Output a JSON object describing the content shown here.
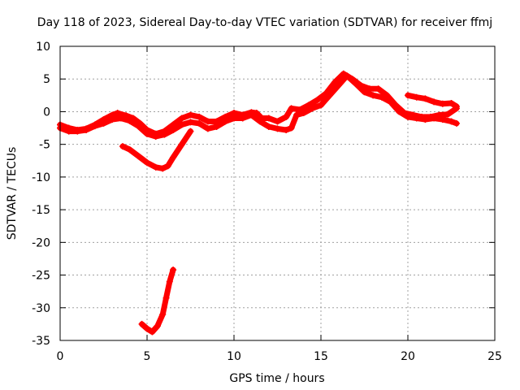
{
  "chart_data": {
    "type": "scatter",
    "title": "Day 118 of 2023, Sidereal Day-to-day VTEC variation (SDTVAR) for receiver ffmj",
    "xlabel": "GPS time / hours",
    "ylabel": "SDTVAR / TECUs",
    "xlim": [
      0,
      25
    ],
    "ylim": [
      -35,
      10
    ],
    "xticks": [
      0,
      5,
      10,
      15,
      20,
      25
    ],
    "yticks": [
      -35,
      -30,
      -25,
      -20,
      -15,
      -10,
      -5,
      0,
      5,
      10
    ],
    "grid": true,
    "marker_color": "#ff0000",
    "series": [
      {
        "name": "main-trace-a",
        "points": [
          [
            0,
            -2.0
          ],
          [
            0.5,
            -2.5
          ],
          [
            1,
            -2.8
          ],
          [
            1.5,
            -2.6
          ],
          [
            2,
            -2.0
          ],
          [
            2.5,
            -1.2
          ],
          [
            3,
            -0.5
          ],
          [
            3.3,
            -0.2
          ],
          [
            3.8,
            -0.6
          ],
          [
            4.2,
            -1.0
          ],
          [
            4.6,
            -1.8
          ],
          [
            5,
            -2.8
          ],
          [
            5.5,
            -3.4
          ],
          [
            6,
            -3.0
          ],
          [
            6.5,
            -2.0
          ],
          [
            7,
            -1.0
          ],
          [
            7.5,
            -0.5
          ],
          [
            8,
            -0.8
          ],
          [
            8.5,
            -1.5
          ],
          [
            9,
            -1.5
          ],
          [
            9.5,
            -0.8
          ],
          [
            10,
            -0.2
          ],
          [
            10.5,
            -0.5
          ],
          [
            11,
            -0.1
          ],
          [
            11.3,
            -0.2
          ],
          [
            11.6,
            -1.0
          ],
          [
            12,
            -1.0
          ],
          [
            12.5,
            -1.5
          ],
          [
            13,
            -0.8
          ],
          [
            13.3,
            0.5
          ],
          [
            13.8,
            0.3
          ],
          [
            14.3,
            1.0
          ],
          [
            14.8,
            1.8
          ],
          [
            15.3,
            2.8
          ],
          [
            15.8,
            4.5
          ],
          [
            16.3,
            5.8
          ],
          [
            16.8,
            5.0
          ],
          [
            17.3,
            4.0
          ],
          [
            17.8,
            3.5
          ],
          [
            18.3,
            3.5
          ],
          [
            18.8,
            2.5
          ],
          [
            19.3,
            1.0
          ],
          [
            19.8,
            -0.2
          ],
          [
            20.3,
            -0.5
          ],
          [
            20.8,
            -0.8
          ],
          [
            21.3,
            -0.8
          ],
          [
            21.8,
            -0.5
          ],
          [
            22.3,
            -0.4
          ],
          [
            22.8,
            0.5
          ]
        ]
      },
      {
        "name": "main-trace-b",
        "points": [
          [
            0,
            -2.5
          ],
          [
            0.5,
            -3.0
          ],
          [
            1,
            -3.0
          ],
          [
            1.5,
            -2.8
          ],
          [
            2,
            -2.2
          ],
          [
            2.5,
            -1.8
          ],
          [
            3,
            -1.2
          ],
          [
            3.5,
            -1.0
          ],
          [
            4,
            -1.4
          ],
          [
            4.5,
            -2.2
          ],
          [
            5,
            -3.4
          ],
          [
            5.5,
            -3.8
          ],
          [
            6,
            -3.5
          ],
          [
            6.5,
            -2.8
          ],
          [
            7,
            -2.0
          ],
          [
            7.5,
            -1.6
          ],
          [
            8,
            -1.8
          ],
          [
            8.5,
            -2.6
          ],
          [
            9,
            -2.3
          ],
          [
            9.5,
            -1.5
          ],
          [
            10,
            -1.0
          ],
          [
            10.5,
            -1.0
          ],
          [
            11,
            -0.5
          ],
          [
            11.5,
            -1.5
          ],
          [
            12,
            -2.3
          ],
          [
            12.5,
            -2.6
          ],
          [
            13,
            -2.8
          ],
          [
            13.3,
            -2.5
          ],
          [
            13.6,
            -0.5
          ],
          [
            14,
            -0.2
          ],
          [
            14.5,
            0.5
          ],
          [
            15,
            1.0
          ],
          [
            15.5,
            2.5
          ],
          [
            16,
            4.0
          ],
          [
            16.5,
            5.5
          ],
          [
            17,
            4.3
          ],
          [
            17.5,
            3.0
          ],
          [
            18,
            2.5
          ],
          [
            18.5,
            2.2
          ],
          [
            19,
            1.5
          ],
          [
            19.5,
            0.0
          ],
          [
            20,
            -0.8
          ],
          [
            20.5,
            -1.0
          ],
          [
            21,
            -1.2
          ],
          [
            21.5,
            -1.0
          ],
          [
            22,
            -1.2
          ],
          [
            22.5,
            -1.5
          ],
          [
            22.8,
            -1.8
          ]
        ]
      },
      {
        "name": "upper-segment",
        "points": [
          [
            20,
            2.5
          ],
          [
            20.5,
            2.2
          ],
          [
            21,
            2.0
          ],
          [
            21.5,
            1.5
          ],
          [
            22,
            1.2
          ],
          [
            22.5,
            1.3
          ],
          [
            22.8,
            0.8
          ]
        ]
      },
      {
        "name": "dip-arc",
        "points": [
          [
            3.6,
            -5.3
          ],
          [
            4,
            -5.8
          ],
          [
            4.5,
            -6.8
          ],
          [
            5,
            -7.8
          ],
          [
            5.5,
            -8.5
          ],
          [
            5.9,
            -8.7
          ],
          [
            6.2,
            -8.3
          ],
          [
            6.5,
            -7.0
          ],
          [
            7,
            -5.0
          ],
          [
            7.5,
            -3.0
          ]
        ]
      },
      {
        "name": "deep-arc",
        "points": [
          [
            4.7,
            -32.5
          ],
          [
            5,
            -33.2
          ],
          [
            5.3,
            -33.7
          ],
          [
            5.6,
            -32.8
          ],
          [
            5.9,
            -31.0
          ],
          [
            6.1,
            -28.5
          ],
          [
            6.3,
            -26.0
          ],
          [
            6.5,
            -24.2
          ]
        ]
      }
    ]
  }
}
